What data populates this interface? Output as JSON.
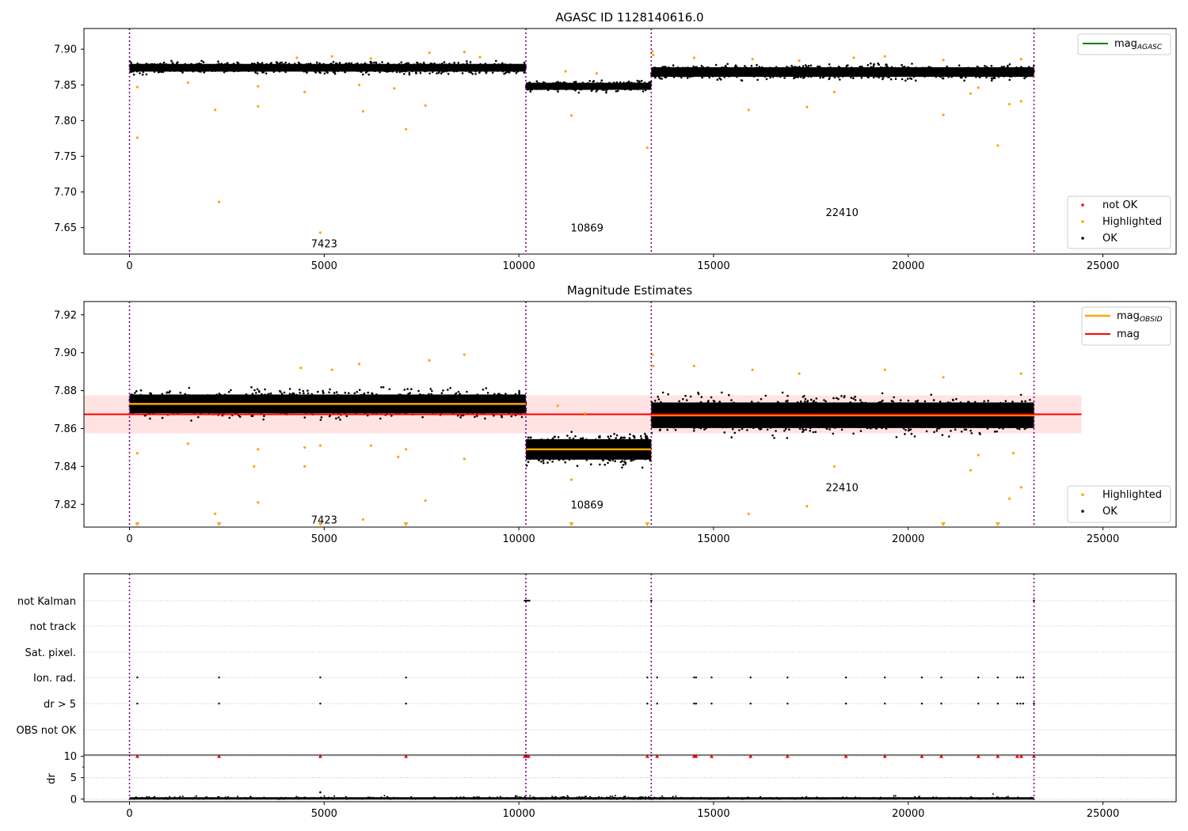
{
  "chart_data": [
    {
      "type": "scatter",
      "title": "AGASC ID 1128140616.0",
      "xlim": [
        -1170,
        26880
      ],
      "ylim": [
        7.613,
        7.929
      ],
      "x_ticks": [
        0,
        5000,
        10000,
        15000,
        20000,
        25000
      ],
      "x_tick_labels": [
        "0",
        "5000",
        "10000",
        "15000",
        "20000",
        "25000"
      ],
      "y_ticks": [
        7.65,
        7.7,
        7.75,
        7.8,
        7.85,
        7.9
      ],
      "y_tick_labels": [
        "7.65",
        "7.70",
        "7.75",
        "7.80",
        "7.85",
        "7.90"
      ],
      "obsid_boundaries": [
        0,
        10180,
        13400,
        23230
      ],
      "obsid_labels": [
        {
          "text": "7423",
          "x": 5000,
          "y": 7.628
        },
        {
          "text": "10869",
          "x": 11750,
          "y": 7.65
        },
        {
          "text": "22410",
          "x": 18300,
          "y": 7.672
        }
      ],
      "obsids": [
        {
          "start": 0,
          "end": 10180,
          "center": 7.874,
          "spread": 0.006,
          "points": 1500
        },
        {
          "start": 10180,
          "end": 13400,
          "center": 7.848,
          "spread": 0.0055,
          "points": 520
        },
        {
          "start": 13400,
          "end": 23230,
          "center": 7.868,
          "spread": 0.0075,
          "points": 1400
        }
      ],
      "highlighted_points": [
        [
          200,
          7.776
        ],
        [
          2300,
          7.686
        ],
        [
          4900,
          7.643
        ],
        [
          7100,
          7.788
        ],
        [
          6000,
          7.813
        ],
        [
          2200,
          7.815
        ],
        [
          3300,
          7.82
        ],
        [
          7600,
          7.821
        ],
        [
          200,
          7.847
        ],
        [
          11350,
          7.807
        ],
        [
          13300,
          7.762
        ],
        [
          15900,
          7.815
        ],
        [
          17400,
          7.819
        ],
        [
          18100,
          7.84
        ],
        [
          20900,
          7.808
        ],
        [
          22300,
          7.765
        ],
        [
          22600,
          7.823
        ],
        [
          22900,
          7.827
        ],
        [
          21600,
          7.838
        ],
        [
          21800,
          7.846
        ],
        [
          4500,
          7.84
        ],
        [
          6800,
          7.845
        ],
        [
          3300,
          7.848
        ],
        [
          4300,
          7.888
        ],
        [
          5200,
          7.89
        ],
        [
          7700,
          7.895
        ],
        [
          8600,
          7.896
        ],
        [
          13430,
          7.897
        ],
        [
          13450,
          7.892
        ],
        [
          14500,
          7.888
        ],
        [
          16000,
          7.886
        ],
        [
          17200,
          7.884
        ],
        [
          18600,
          7.888
        ],
        [
          19400,
          7.89
        ],
        [
          20900,
          7.885
        ],
        [
          22900,
          7.886
        ],
        [
          11200,
          7.869
        ],
        [
          12000,
          7.866
        ],
        [
          9000,
          7.889
        ],
        [
          6200,
          7.887
        ],
        [
          1500,
          7.853
        ],
        [
          5900,
          7.85
        ]
      ],
      "legend": [
        {
          "label": "mag",
          "sub": "AGASC",
          "color": "#008000",
          "placement": "upper right"
        },
        {
          "label": "not OK",
          "color": "#ff0000",
          "placement": "lower right"
        },
        {
          "label": "Highlighted",
          "color": "#ffa500",
          "placement": "lower right"
        },
        {
          "label": "OK",
          "color": "#000000",
          "placement": "lower right"
        }
      ]
    },
    {
      "type": "scatter",
      "title": "Magnitude Estimates",
      "xlim": [
        -1170,
        26880
      ],
      "ylim": [
        7.808,
        7.927
      ],
      "x_ticks": [
        0,
        5000,
        10000,
        15000,
        20000,
        25000
      ],
      "x_tick_labels": [
        "0",
        "5000",
        "10000",
        "15000",
        "20000",
        "25000"
      ],
      "y_ticks": [
        7.82,
        7.84,
        7.86,
        7.88,
        7.9,
        7.92
      ],
      "y_tick_labels": [
        "7.82",
        "7.84",
        "7.86",
        "7.88",
        "7.90",
        "7.92"
      ],
      "obsid_boundaries": [
        0,
        10180,
        13400,
        23230
      ],
      "obsid_labels": [
        {
          "text": "7423",
          "x": 5000,
          "y": 7.812
        },
        {
          "text": "10869",
          "x": 11750,
          "y": 7.82
        },
        {
          "text": "22410",
          "x": 18300,
          "y": 7.829
        }
      ],
      "obsids": [
        {
          "start": 0,
          "end": 10180,
          "center": 7.873,
          "spread": 0.0055,
          "points": 1700,
          "mag_obsid": 7.873
        },
        {
          "start": 10180,
          "end": 13400,
          "center": 7.849,
          "spread": 0.006,
          "points": 650,
          "mag_obsid": 7.849
        },
        {
          "start": 13400,
          "end": 23230,
          "center": 7.867,
          "spread": 0.0075,
          "points": 1600,
          "mag_obsid": 7.867
        }
      ],
      "mag": 7.8675,
      "mag_band": [
        7.8575,
        7.8775
      ],
      "mag_band_x": [
        -1170,
        24450
      ],
      "highlighted_points": [
        [
          200,
          7.847
        ],
        [
          2200,
          7.815
        ],
        [
          3300,
          7.821
        ],
        [
          3200,
          7.84
        ],
        [
          3300,
          7.849
        ],
        [
          4500,
          7.84
        ],
        [
          4500,
          7.85
        ],
        [
          4900,
          7.851
        ],
        [
          6000,
          7.812
        ],
        [
          6200,
          7.851
        ],
        [
          6900,
          7.845
        ],
        [
          7100,
          7.849
        ],
        [
          7600,
          7.822
        ],
        [
          8600,
          7.844
        ],
        [
          1500,
          7.852
        ],
        [
          5900,
          7.894
        ],
        [
          7700,
          7.896
        ],
        [
          8600,
          7.899
        ],
        [
          4400,
          7.892
        ],
        [
          5200,
          7.891
        ],
        [
          11000,
          7.872
        ],
        [
          11350,
          7.833
        ],
        [
          11700,
          7.868
        ],
        [
          15900,
          7.815
        ],
        [
          17400,
          7.819
        ],
        [
          18100,
          7.84
        ],
        [
          21600,
          7.838
        ],
        [
          21800,
          7.846
        ],
        [
          22600,
          7.823
        ],
        [
          22900,
          7.829
        ],
        [
          13430,
          7.899
        ],
        [
          13450,
          7.893
        ],
        [
          14500,
          7.893
        ],
        [
          16000,
          7.891
        ],
        [
          17200,
          7.889
        ],
        [
          19400,
          7.891
        ],
        [
          20900,
          7.887
        ],
        [
          22900,
          7.889
        ],
        [
          22700,
          7.847
        ]
      ],
      "below_axis_markers": [
        200,
        2300,
        4900,
        7100,
        11350,
        13300,
        20900,
        22300
      ],
      "legend": [
        {
          "label": "mag",
          "sub": "OBSID",
          "color": "#ffa500",
          "placement": "upper right"
        },
        {
          "label": "mag",
          "color": "#ff0000",
          "placement": "upper right"
        },
        {
          "label": "Highlighted",
          "color": "#ffa500",
          "placement": "lower right"
        },
        {
          "label": "OK",
          "color": "#000000",
          "placement": "lower right"
        }
      ]
    },
    {
      "type": "scatter",
      "title": "",
      "xlim": [
        -1170,
        26880
      ],
      "categories": [
        "not Kalman",
        "not track",
        "Sat. pixel.",
        "Ion. rad.",
        "dr > 5",
        "OBS not OK"
      ],
      "obsid_boundaries": [
        0,
        10180,
        13400,
        23230
      ],
      "flag_points": {
        "not Kalman": [
          10150,
          10180,
          10210,
          10240,
          10270,
          13400,
          23230
        ],
        "Ion. rad.": [
          200,
          2300,
          4900,
          7100,
          13300,
          13550,
          14500,
          14550,
          14950,
          15950,
          16900,
          18400,
          19400,
          20350,
          20850,
          21800,
          22300,
          22800,
          22880,
          22950,
          23230
        ],
        "dr > 5": [
          200,
          2300,
          4900,
          7100,
          13300,
          13550,
          14500,
          14550,
          14950,
          15950,
          16900,
          18400,
          19400,
          20350,
          20850,
          21800,
          22300,
          22800,
          22880,
          22950,
          23230
        ]
      }
    },
    {
      "type": "scatter",
      "title": "",
      "ylabel": "dr",
      "xlim": [
        -1170,
        26880
      ],
      "ylim": [
        -0.6,
        10.3
      ],
      "x_ticks": [
        0,
        5000,
        10000,
        15000,
        20000,
        25000
      ],
      "x_tick_labels": [
        "0",
        "5000",
        "10000",
        "15000",
        "20000",
        "25000"
      ],
      "y_ticks": [
        0,
        5,
        10
      ],
      "y_tick_labels": [
        "0",
        "5",
        "10"
      ],
      "obsid_boundaries": [
        0,
        10180,
        13400,
        23230
      ],
      "clipped_at": 10,
      "clipped_points": [
        200,
        2300,
        4900,
        7100,
        10150,
        10200,
        10250,
        13300,
        13550,
        14500,
        14550,
        14950,
        15950,
        16900,
        18400,
        19400,
        20350,
        20850,
        21800,
        22300,
        22800,
        22900,
        23230
      ],
      "outlier_points": [
        [
          4900,
          1.6
        ]
      ]
    }
  ]
}
